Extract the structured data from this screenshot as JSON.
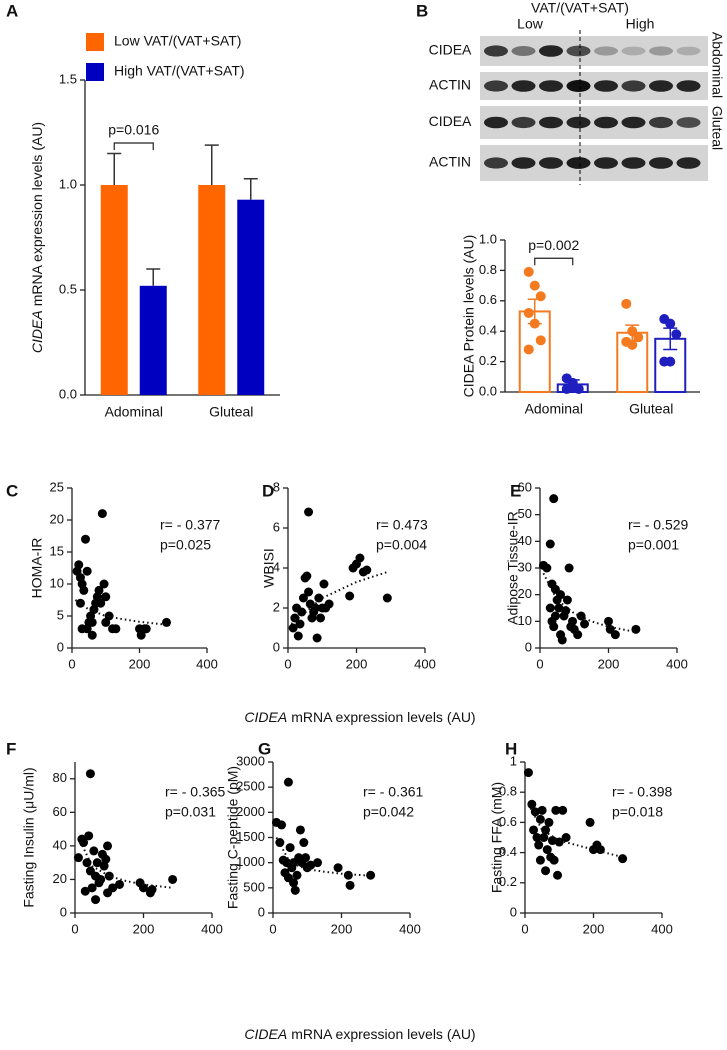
{
  "blot": {
    "panel_label": "B",
    "title": "VAT/(VAT+SAT)",
    "groups": [
      "Low",
      "High"
    ],
    "rows": [
      "CIDEA",
      "ACTIN",
      "CIDEA",
      "ACTIN"
    ],
    "sides": [
      "Abdominal",
      "Gluteal"
    ]
  },
  "x_axis_titles": [
    [
      "CIDEA",
      "mRNA  expression levels (AU)"
    ],
    [
      "CIDEA",
      "mRNA  expression levels (AU)"
    ]
  ],
  "chart_data": [
    {
      "type": "bar",
      "panel_label": "A",
      "categories": [
        "Adominal",
        "Gluteal"
      ],
      "series": [
        {
          "name": "Low VAT/(VAT+SAT)",
          "color": "#ff6600",
          "values": [
            1.0,
            1.0
          ],
          "errors": [
            0.15,
            0.19
          ]
        },
        {
          "name": "High VAT/(VAT+SAT)",
          "color": "#0000c0",
          "values": [
            0.52,
            0.93
          ],
          "errors": [
            0.08,
            0.1
          ]
        }
      ],
      "ylim": [
        0,
        1.5
      ],
      "yticks": [
        {
          "value": 0,
          "label": "0.0"
        },
        {
          "value": 0.5,
          "label": "0.5"
        },
        {
          "value": 1,
          "label": "1.0"
        },
        {
          "value": 1.5,
          "label": "1.5"
        }
      ],
      "ylabel": [
        "CIDEA",
        "mRNA expression levels (AU)"
      ],
      "annotations": [
        "p=0.016"
      ]
    },
    {
      "type": "bar_dot",
      "categories": [
        "Adominal",
        "Gluteal"
      ],
      "series": [
        {
          "color": "#f47a20",
          "values": [
            0.53,
            0.39
          ],
          "errors": [
            0.08,
            0.05
          ],
          "points": [
            [
              0.79,
              0.7,
              0.63,
              0.52,
              0.45,
              0.34,
              0.28
            ],
            [
              0.58,
              0.4,
              0.36,
              0.33,
              0.31
            ]
          ]
        },
        {
          "color": "#1f1fbf",
          "values": [
            0.05,
            0.35
          ],
          "errors": [
            0.03,
            0.07
          ],
          "points": [
            [
              0.09,
              0.06,
              0.02,
              0.02,
              0.03
            ],
            [
              0.48,
              0.45,
              0.38,
              0.2,
              0.2
            ]
          ]
        }
      ],
      "ylim": [
        0,
        1.0
      ],
      "yticks": [
        {
          "value": 0,
          "label": "0.0"
        },
        {
          "value": 0.2,
          "label": "0.2"
        },
        {
          "value": 0.4,
          "label": "0.4"
        },
        {
          "value": 0.6,
          "label": "0.6"
        },
        {
          "value": 0.8,
          "label": "0.8"
        },
        {
          "value": 1,
          "label": "1.0"
        }
      ],
      "ylabel": "CIDEA Protein levels (AU)",
      "annotations": [
        "p=0.002"
      ]
    },
    {
      "type": "scatter",
      "panel_label": "C",
      "ylabel": "HOMA-IR",
      "annotations": [
        "r= - 0.377",
        "p=0.025"
      ],
      "xlim": [
        0,
        400
      ],
      "xticks": [
        0,
        200,
        400
      ],
      "ylim": [
        0,
        25
      ],
      "yticks": [
        0,
        5,
        10,
        15,
        20,
        25
      ],
      "x": [
        15,
        20,
        25,
        30,
        25,
        35,
        40,
        45,
        50,
        30,
        45,
        55,
        60,
        60,
        65,
        70,
        75,
        80,
        85,
        90,
        95,
        100,
        100,
        110,
        120,
        130,
        200,
        205,
        215,
        220,
        280
      ],
      "y": [
        12,
        13,
        11,
        10,
        7,
        9,
        17,
        12,
        4,
        3,
        3,
        5,
        2,
        4,
        6,
        7,
        8,
        9,
        7,
        21,
        10,
        8,
        4,
        5,
        3,
        3,
        3,
        2,
        3,
        3,
        4
      ],
      "trend": {
        "x": [
          10,
          50,
          100,
          150,
          200,
          250,
          290
        ],
        "y": [
          7.5,
          6,
          5,
          4.5,
          4.1,
          3.8,
          3.6
        ]
      }
    },
    {
      "type": "scatter",
      "panel_label": "D",
      "ylabel": "WBISI",
      "annotations": [
        "r= 0.473",
        "p=0.004"
      ],
      "xlim": [
        0,
        400
      ],
      "xticks": [
        0,
        200,
        400
      ],
      "ylim": [
        0,
        8
      ],
      "yticks": [
        0,
        2,
        4,
        6,
        8
      ],
      "x": [
        15,
        20,
        25,
        30,
        35,
        40,
        45,
        50,
        55,
        60,
        60,
        65,
        70,
        75,
        80,
        85,
        90,
        95,
        100,
        105,
        110,
        120,
        180,
        190,
        200,
        210,
        220,
        230,
        290
      ],
      "y": [
        1,
        1.5,
        2,
        0.6,
        1.2,
        1.8,
        2.5,
        3.5,
        3.6,
        6.8,
        2.8,
        2.2,
        1.5,
        1.8,
        2,
        0.5,
        2.5,
        1.5,
        2,
        3.2,
        2,
        2.2,
        2.6,
        4,
        4.2,
        4.5,
        3.8,
        3.9,
        2.5
      ],
      "trend": {
        "x": [
          10,
          100,
          200,
          290
        ],
        "y": [
          1.2,
          2.5,
          3.3,
          3.8
        ]
      }
    },
    {
      "type": "scatter",
      "panel_label": "E",
      "ylabel": "Adipose Tissue-IR",
      "annotations": [
        "r= - 0.529",
        "p=0.001"
      ],
      "xlim": [
        0,
        400
      ],
      "xticks": [
        0,
        200,
        400
      ],
      "ylim": [
        0,
        60
      ],
      "yticks": [
        0,
        10,
        20,
        30,
        40,
        50,
        60
      ],
      "x": [
        10,
        20,
        30,
        35,
        40,
        45,
        50,
        30,
        35,
        40,
        45,
        55,
        60,
        60,
        65,
        70,
        75,
        80,
        85,
        90,
        95,
        100,
        110,
        120,
        130,
        200,
        205,
        220,
        280
      ],
      "y": [
        31,
        30,
        39,
        24,
        56,
        22,
        18,
        15,
        10,
        8,
        12,
        15,
        5,
        20,
        3,
        12,
        14,
        18,
        30,
        8,
        10,
        7,
        5,
        12,
        9,
        10,
        7,
        5,
        7
      ],
      "trend": {
        "x": [
          10,
          50,
          100,
          150,
          200,
          280
        ],
        "y": [
          28,
          18,
          13,
          10,
          8,
          6
        ]
      }
    },
    {
      "type": "scatter",
      "panel_label": "F",
      "ylabel": "Fasting Insulin (μU/ml)",
      "annotations": [
        "r= - 0.365",
        "p=0.031"
      ],
      "xlim": [
        0,
        400
      ],
      "xticks": [
        0,
        200,
        400
      ],
      "ylim": [
        0,
        90
      ],
      "yticks": [
        0,
        20,
        40,
        60,
        80
      ],
      "x": [
        10,
        20,
        25,
        30,
        35,
        40,
        45,
        45,
        50,
        55,
        60,
        60,
        65,
        70,
        75,
        80,
        85,
        90,
        95,
        95,
        100,
        110,
        130,
        190,
        200,
        220,
        225,
        285
      ],
      "y": [
        33,
        44,
        42,
        13,
        30,
        46,
        83,
        25,
        15,
        37,
        22,
        8,
        30,
        18,
        20,
        35,
        28,
        32,
        40,
        12,
        22,
        15,
        17,
        18,
        15,
        12,
        14,
        20
      ],
      "trend": {
        "x": [
          10,
          50,
          100,
          150,
          200,
          285
        ],
        "y": [
          45,
          28,
          22,
          19,
          17,
          15
        ]
      }
    },
    {
      "type": "scatter",
      "panel_label": "G",
      "ylabel": "Fasting C-peptide (pM)",
      "annotations": [
        "r= - 0.361",
        "p=0.042"
      ],
      "xlim": [
        0,
        400
      ],
      "xticks": [
        0,
        200,
        400
      ],
      "ylim": [
        0,
        3000
      ],
      "yticks": [
        0,
        500,
        1000,
        1500,
        2000,
        2500,
        3000
      ],
      "x": [
        10,
        20,
        25,
        30,
        35,
        40,
        45,
        45,
        50,
        55,
        60,
        60,
        65,
        70,
        75,
        80,
        85,
        90,
        95,
        100,
        110,
        130,
        190,
        220,
        225,
        285
      ],
      "y": [
        1800,
        1400,
        1750,
        1050,
        800,
        1000,
        2600,
        700,
        1300,
        900,
        1000,
        600,
        450,
        750,
        1100,
        1650,
        1000,
        1400,
        1100,
        900,
        950,
        1000,
        900,
        750,
        550,
        750
      ],
      "trend": {
        "x": [
          10,
          50,
          100,
          150,
          200,
          285
        ],
        "y": [
          1500,
          1000,
          870,
          820,
          780,
          740
        ]
      }
    },
    {
      "type": "scatter",
      "panel_label": "H",
      "ylabel": "Fasting FFA (mM)",
      "annotations": [
        "r= - 0.398",
        "p=0.018"
      ],
      "xlim": [
        0,
        400
      ],
      "xticks": [
        0,
        200,
        400
      ],
      "ylim": [
        0,
        1
      ],
      "yticks": [
        0,
        0.2,
        0.4,
        0.6,
        0.8,
        1
      ],
      "x": [
        10,
        20,
        25,
        30,
        35,
        40,
        45,
        45,
        50,
        55,
        60,
        60,
        65,
        70,
        75,
        80,
        85,
        90,
        95,
        100,
        110,
        120,
        190,
        200,
        210,
        220,
        285
      ],
      "y": [
        0.93,
        0.72,
        0.55,
        0.67,
        0.5,
        0.45,
        0.62,
        0.35,
        0.68,
        0.5,
        0.55,
        0.28,
        0.42,
        0.6,
        0.37,
        0.48,
        0.35,
        0.68,
        0.25,
        0.47,
        0.68,
        0.5,
        0.6,
        0.42,
        0.45,
        0.42,
        0.36
      ],
      "trend": {
        "x": [
          10,
          50,
          100,
          150,
          200,
          285
        ],
        "y": [
          0.72,
          0.55,
          0.48,
          0.45,
          0.42,
          0.37
        ]
      }
    }
  ]
}
